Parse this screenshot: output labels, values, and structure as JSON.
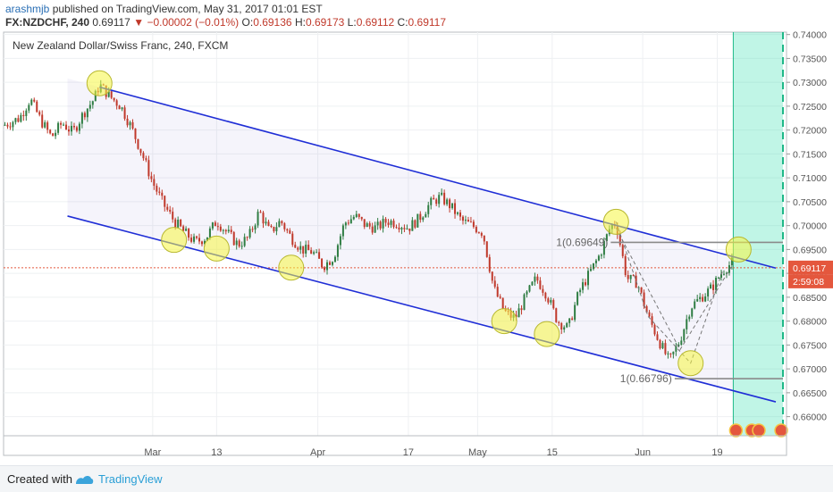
{
  "header": {
    "user": "arashmjb",
    "published": "published on TradingView.com, May 31, 2017 01:01 EST"
  },
  "symbol_line": {
    "symbol": "FX:NZDCHF, 240",
    "last": "0.69117",
    "change": "−0.00002 (−0.01%)",
    "o_label": "O:",
    "o_value": "0.69136",
    "h_label": "H:",
    "h_value": "0.69173",
    "l_label": "L:",
    "l_value": "0.69112",
    "c_label": "C:",
    "c_value": "0.69117"
  },
  "footer": {
    "created_with": "Created with",
    "brand": "TradingView"
  },
  "colors": {
    "channel": "#1f2ed6",
    "candle_up": "#2f7d43",
    "candle_down": "#c0392b",
    "highlight": "#f5f542",
    "projection": "#3fe0b4",
    "price_tag": "#e4573d"
  },
  "chart_data": {
    "type": "candlestick",
    "title": "New Zealand Dollar/Swiss Franc, 240, FXCM",
    "ylim": [
      0.656,
      0.7405
    ],
    "y_ticks": [
      "0.74000",
      "0.73500",
      "0.73000",
      "0.72500",
      "0.72000",
      "0.71500",
      "0.71000",
      "0.70500",
      "0.70000",
      "0.69500",
      "0.69000",
      "0.68500",
      "0.68000",
      "0.67500",
      "0.67000",
      "0.66500",
      "0.66000"
    ],
    "y_tick_values": [
      0.74,
      0.735,
      0.73,
      0.725,
      0.72,
      0.715,
      0.71,
      0.705,
      0.7,
      0.695,
      0.69,
      0.685,
      0.68,
      0.675,
      0.67,
      0.665,
      0.66
    ],
    "x_ticks": [
      "Mar",
      "13",
      "Apr",
      "17",
      "May",
      "15",
      "Jun",
      "19"
    ],
    "x_tick_days": [
      28,
      40,
      59,
      76,
      89,
      103,
      120,
      134
    ],
    "x_range_days": [
      0,
      147
    ],
    "x_axis_note": "days since Feb 1 2017",
    "last_price": "0.69117",
    "countdown": "2:59:08",
    "price_path": [
      [
        0,
        0.721
      ],
      [
        3,
        0.7225
      ],
      [
        5,
        0.7265
      ],
      [
        7,
        0.722
      ],
      [
        9,
        0.7185
      ],
      [
        11,
        0.7215
      ],
      [
        13,
        0.7195
      ],
      [
        15,
        0.7235
      ],
      [
        17,
        0.7265
      ],
      [
        18,
        0.7295
      ],
      [
        20,
        0.727
      ],
      [
        22,
        0.725
      ],
      [
        24,
        0.7205
      ],
      [
        26,
        0.715
      ],
      [
        28,
        0.709
      ],
      [
        30,
        0.7045
      ],
      [
        32,
        0.701
      ],
      [
        34,
        0.6985
      ],
      [
        36,
        0.6965
      ],
      [
        38,
        0.6975
      ],
      [
        40,
        0.701
      ],
      [
        42,
        0.6985
      ],
      [
        44,
        0.696
      ],
      [
        46,
        0.6975
      ],
      [
        48,
        0.703
      ],
      [
        50,
        0.6985
      ],
      [
        52,
        0.701
      ],
      [
        54,
        0.6975
      ],
      [
        56,
        0.695
      ],
      [
        58,
        0.6945
      ],
      [
        60,
        0.6915
      ],
      [
        62,
        0.6935
      ],
      [
        64,
        0.7005
      ],
      [
        66,
        0.702
      ],
      [
        68,
        0.7
      ],
      [
        70,
        0.6995
      ],
      [
        72,
        0.701
      ],
      [
        74,
        0.7005
      ],
      [
        76,
        0.6995
      ],
      [
        78,
        0.7015
      ],
      [
        80,
        0.7045
      ],
      [
        82,
        0.706
      ],
      [
        84,
        0.704
      ],
      [
        86,
        0.701
      ],
      [
        88,
        0.7
      ],
      [
        90,
        0.6985
      ],
      [
        92,
        0.687
      ],
      [
        94,
        0.682
      ],
      [
        96,
        0.6805
      ],
      [
        98,
        0.685
      ],
      [
        100,
        0.689
      ],
      [
        102,
        0.6855
      ],
      [
        104,
        0.68
      ],
      [
        106,
        0.6785
      ],
      [
        108,
        0.686
      ],
      [
        110,
        0.69
      ],
      [
        112,
        0.694
      ],
      [
        114,
        0.7
      ],
      [
        115,
        0.7005
      ],
      [
        117,
        0.689
      ],
      [
        119,
        0.688
      ],
      [
        121,
        0.681
      ],
      [
        123,
        0.676
      ],
      [
        125,
        0.6715
      ],
      [
        127,
        0.676
      ],
      [
        129,
        0.683
      ],
      [
        131,
        0.685
      ],
      [
        133,
        0.687
      ],
      [
        135,
        0.6905
      ],
      [
        137,
        0.6925
      ]
    ],
    "channel_upper": [
      [
        18,
        0.729
      ],
      [
        147,
        0.6905
      ]
    ],
    "channel_lower": [
      [
        12,
        0.702
      ],
      [
        147,
        0.6625
      ]
    ],
    "highlights": [
      [
        18,
        0.7298
      ],
      [
        32,
        0.697
      ],
      [
        40,
        0.6952
      ],
      [
        54,
        0.6912
      ],
      [
        94,
        0.68
      ],
      [
        102,
        0.6773
      ],
      [
        115,
        0.7008
      ],
      [
        129,
        0.6712
      ],
      [
        138,
        0.695
      ]
    ],
    "levels": [
      {
        "label": "1(0.69649)",
        "value": 0.69649,
        "x_start": 114,
        "x_end": 147
      },
      {
        "label": "1(0.66796)",
        "value": 0.66796,
        "x_start": 126,
        "x_end": 147
      }
    ],
    "projection_zone": {
      "x_start": 137,
      "x_end": 147
    }
  }
}
